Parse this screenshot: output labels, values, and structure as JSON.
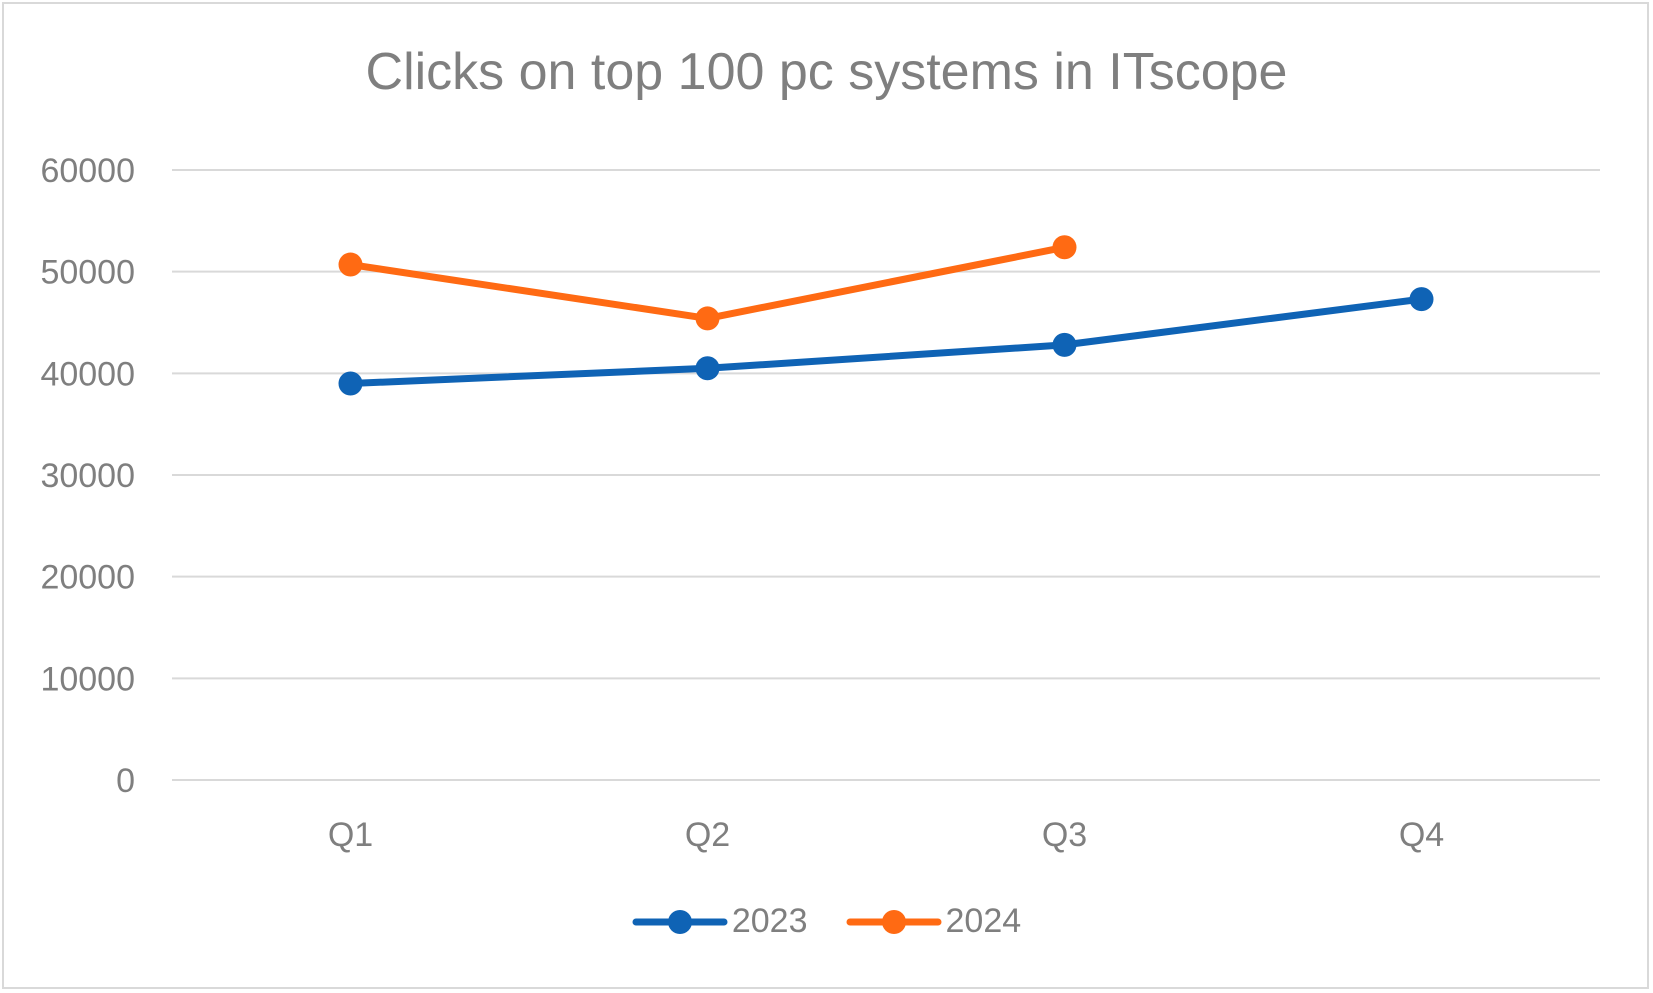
{
  "chart_data": {
    "type": "line",
    "title": "Clicks on top 100 pc systems in ITscope",
    "xlabel": "",
    "ylabel": "",
    "categories": [
      "Q1",
      "Q2",
      "Q3",
      "Q4"
    ],
    "ylim": [
      0,
      60000
    ],
    "yticks": [
      0,
      10000,
      20000,
      30000,
      40000,
      50000,
      60000
    ],
    "grid": true,
    "legend_position": "bottom",
    "series": [
      {
        "name": "2023",
        "color": "#0F63B5",
        "values": [
          39000,
          40500,
          42800,
          47300
        ]
      },
      {
        "name": "2024",
        "color": "#FF6A13",
        "values": [
          50700,
          45400,
          52400,
          null
        ]
      }
    ]
  }
}
